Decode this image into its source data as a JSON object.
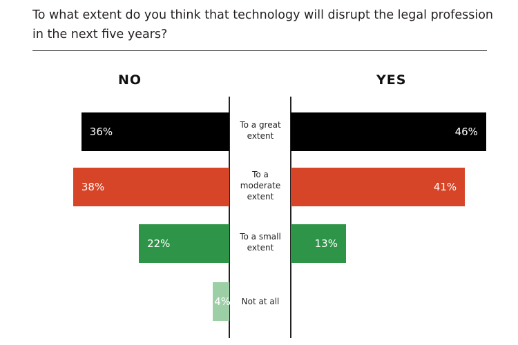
{
  "title": "To what extent do you think that technology will disrupt the legal profession in the next five years?",
  "chart_data": {
    "type": "bar",
    "orientation": "horizontal-diverging",
    "title": "To what extent do you think that technology will disrupt the legal profession in the next five years?",
    "categories": [
      "To a great extent",
      "To a moderate extent",
      "To a small extent",
      "Not at all"
    ],
    "series": [
      {
        "name": "NO",
        "values": [
          36,
          38,
          22,
          4
        ],
        "labels": [
          "36%",
          "38%",
          "22%",
          "4%"
        ]
      },
      {
        "name": "YES",
        "values": [
          46,
          41,
          13,
          null
        ],
        "labels": [
          "46%",
          "41%",
          "13%",
          null
        ]
      }
    ],
    "colors": [
      "#000000",
      "#d64527",
      "#2e9447",
      "#9ccfa6"
    ],
    "unit": "%",
    "grid": false
  }
}
